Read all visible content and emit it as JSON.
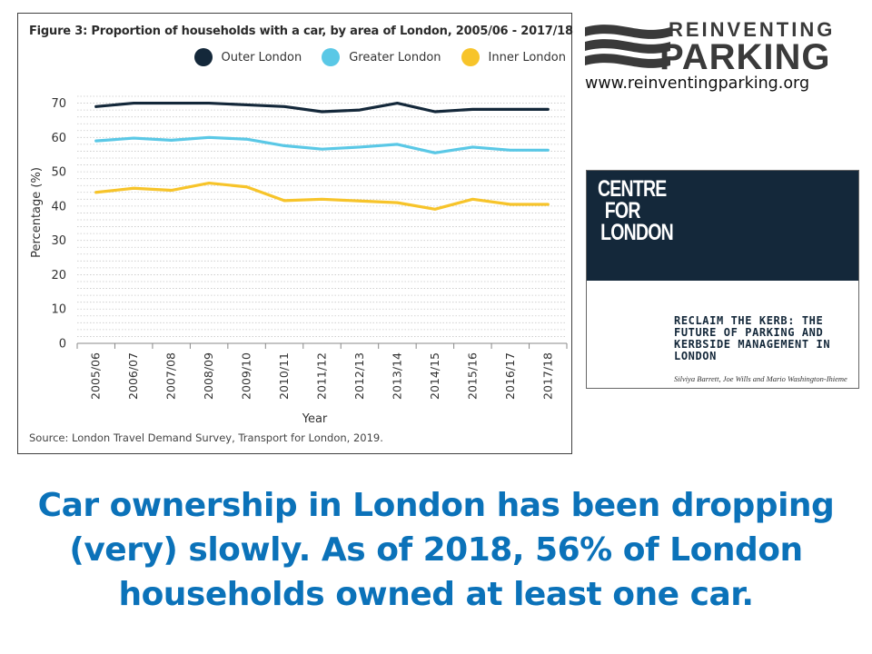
{
  "chart": {
    "title": "Figure 3: Proportion of households with a car, by area of London, 2005/06 - 2017/18",
    "source": "Source: London Travel Demand Survey, Transport for London, 2019.",
    "xlabel": "Year",
    "ylabel": "Percentage (%)"
  },
  "chart_data": {
    "type": "line",
    "title": "Figure 3: Proportion of households with a car, by area of London, 2005/06 - 2017/18",
    "xlabel": "Year",
    "ylabel": "Percentage (%)",
    "ylim": [
      0,
      72
    ],
    "yticks": [
      0,
      10,
      20,
      30,
      40,
      50,
      60,
      70
    ],
    "grid": "dotted horizontal",
    "legend": "top-right",
    "categories": [
      "2005/06",
      "2006/07",
      "2007/08",
      "2008/09",
      "2009/10",
      "2010/11",
      "2011/12",
      "2012/13",
      "2013/14",
      "2014/15",
      "2015/16",
      "2016/17",
      "2017/18"
    ],
    "series": [
      {
        "name": "Outer London",
        "color": "#14283a",
        "values": [
          69,
          70,
          70,
          70,
          69.5,
          69,
          67.5,
          68,
          70,
          67.5,
          68.2,
          68.2,
          68.2
        ]
      },
      {
        "name": "Greater London",
        "color": "#5ac8e6",
        "values": [
          59,
          59.8,
          59.2,
          60,
          59.5,
          57.6,
          56.6,
          57.2,
          58,
          55.5,
          57.2,
          56.3,
          56.3
        ]
      },
      {
        "name": "Inner London",
        "color": "#f7c42a",
        "values": [
          44,
          45.2,
          44.6,
          46.7,
          45.6,
          41.6,
          42,
          41.5,
          41,
          39.1,
          42,
          40.5,
          40.5
        ]
      }
    ]
  },
  "brand": {
    "name_top": "REINVENTING",
    "name_bottom": "PARKING",
    "url": "www.reinventingparking.org",
    "colors": {
      "dark": "#3a3a3a",
      "blue": "#1f79bf"
    }
  },
  "cover": {
    "org_lines": [
      "CENTRE",
      "FOR",
      "LONDON"
    ],
    "title": "RECLAIM THE KERB: THE FUTURE OF PARKING AND KERBSIDE MANAGEMENT IN LONDON",
    "authors": "Silviya Barrett, Joe Wills and Mario Washington-Ihieme"
  },
  "caption": "Car ownership in London has been dropping (very) slowly. As of 2018, 56% of London households owned at least one car."
}
